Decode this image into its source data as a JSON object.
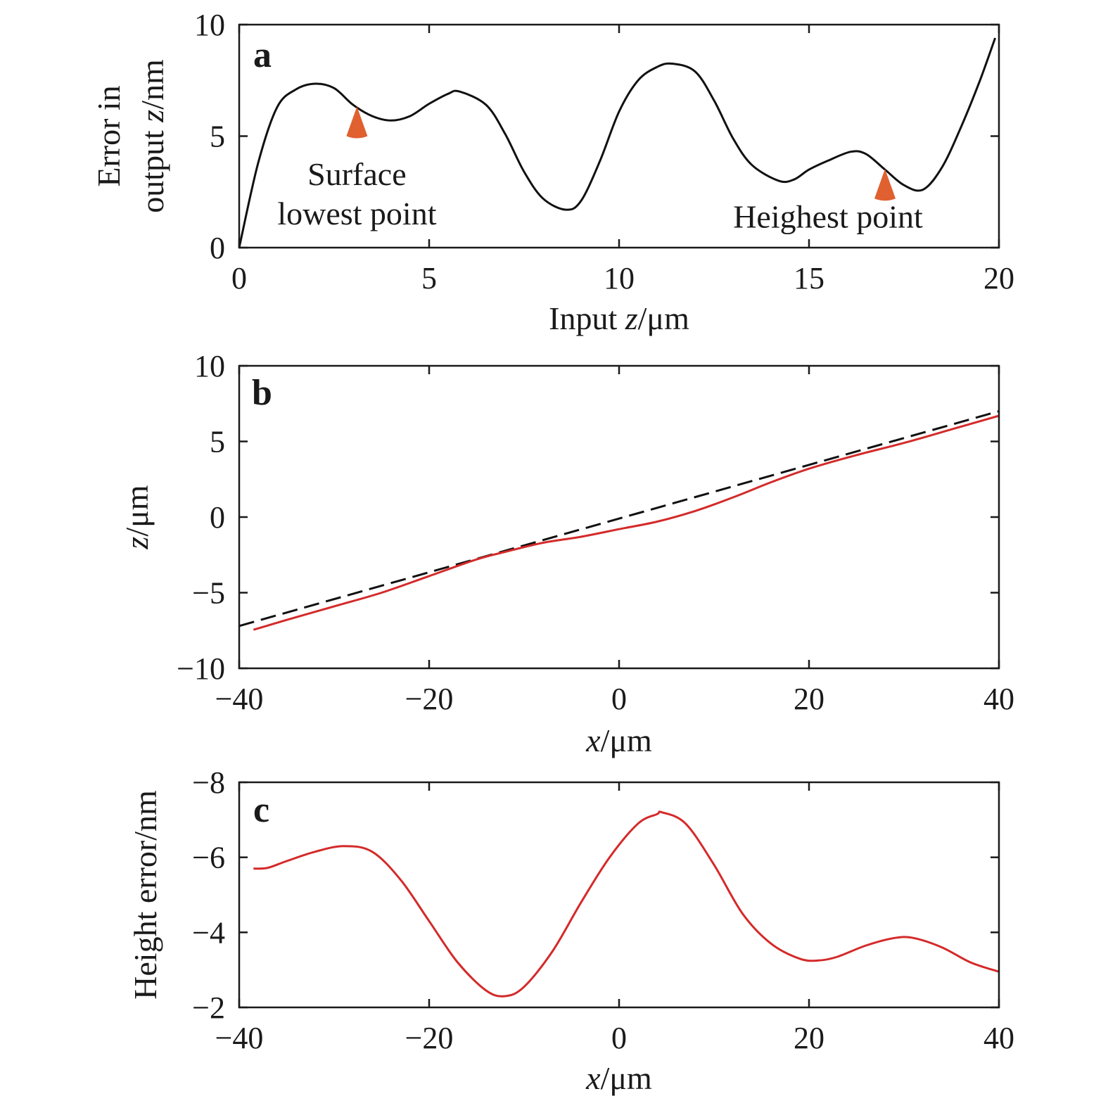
{
  "chart_data": [
    {
      "type": "line",
      "panel": "a",
      "xlabel": "Input z/μm",
      "xlabel_parts": [
        "Input ",
        "z",
        "/μm"
      ],
      "ylabel_lines": [
        [
          "Error in"
        ],
        [
          "output ",
          "z",
          "/nm"
        ]
      ],
      "xlim": [
        0,
        20
      ],
      "ylim": [
        0,
        10
      ],
      "xticks": [
        0,
        5,
        10,
        15,
        20
      ],
      "xtick_labels": [
        "0",
        "5",
        "10",
        "15",
        "20"
      ],
      "yticks": [
        0,
        5,
        10
      ],
      "ytick_labels": [
        "0",
        "5",
        "10"
      ],
      "grid": false,
      "series": [
        {
          "color": "#111111",
          "dash": "solid",
          "x": [
            0,
            0.5,
            1.0,
            1.5,
            2.0,
            2.5,
            3.0,
            3.5,
            4.0,
            4.5,
            5.0,
            5.5,
            5.8,
            6.5,
            7.0,
            7.5,
            8.0,
            8.6,
            9.0,
            9.5,
            10.0,
            10.5,
            11.0,
            11.4,
            12.0,
            12.5,
            13.0,
            13.5,
            14.2,
            14.6,
            15.0,
            15.5,
            16.1,
            16.5,
            17.0,
            17.5,
            18.0,
            18.5,
            19.0,
            19.5,
            19.9
          ],
          "y": [
            0.0,
            3.8,
            6.3,
            7.1,
            7.35,
            7.15,
            6.4,
            5.9,
            5.7,
            5.9,
            6.45,
            6.9,
            7.0,
            6.4,
            5.1,
            3.4,
            2.2,
            1.7,
            2.1,
            3.9,
            6.1,
            7.5,
            8.1,
            8.25,
            7.9,
            6.6,
            4.9,
            3.7,
            3.0,
            3.05,
            3.5,
            3.9,
            4.3,
            4.2,
            3.5,
            2.8,
            2.6,
            3.6,
            5.4,
            7.5,
            9.4
          ]
        }
      ],
      "annotations": [
        {
          "lines": [
            "Surface",
            "lowest point"
          ],
          "marker_x": 3.1,
          "marker_y": 5.0,
          "text_x": 3.1,
          "text_y": 2.8
        },
        {
          "lines": [
            "Heighest point"
          ],
          "marker_x": 17.0,
          "marker_y": 2.2,
          "text_x": 15.5,
          "text_y": 0.9
        }
      ],
      "marker_color": "#e06030"
    },
    {
      "type": "line",
      "panel": "b",
      "xlabel": "x/μm",
      "xlabel_parts": [
        "",
        "x",
        "/μm"
      ],
      "ylabel_lines": [
        [
          "",
          "z",
          "/μm"
        ]
      ],
      "xlim": [
        -40,
        40
      ],
      "ylim": [
        -10,
        10
      ],
      "xticks": [
        -40,
        -20,
        0,
        20,
        40
      ],
      "xtick_labels": [
        "−40",
        "−20",
        "0",
        "20",
        "40"
      ],
      "yticks": [
        -10,
        -5,
        0,
        5,
        10
      ],
      "ytick_labels": [
        "−10",
        "−5",
        "0",
        "5",
        "10"
      ],
      "grid": false,
      "series": [
        {
          "color": "#111111",
          "dash": "dashed",
          "x": [
            -40,
            40
          ],
          "y": [
            -7.2,
            7.0
          ]
        },
        {
          "color": "#d42a2a",
          "dash": "solid",
          "x": [
            -38.5,
            -35,
            -30,
            -25,
            -20,
            -15,
            -12,
            -8,
            -4,
            0,
            4,
            8,
            12,
            16,
            20,
            25,
            30,
            35,
            40
          ],
          "y": [
            -7.45,
            -6.8,
            -5.9,
            -5.0,
            -3.9,
            -2.8,
            -2.3,
            -1.7,
            -1.3,
            -0.8,
            -0.3,
            0.4,
            1.3,
            2.3,
            3.2,
            4.1,
            4.9,
            5.8,
            6.7
          ]
        }
      ],
      "annotations": []
    },
    {
      "type": "line",
      "panel": "c",
      "xlabel": "x/μm",
      "xlabel_parts": [
        "",
        "x",
        "/μm"
      ],
      "ylabel_lines": [
        [
          "Height error/nm"
        ]
      ],
      "xlim": [
        -40,
        40
      ],
      "ylim": [
        -8,
        -2
      ],
      "y_inverted": true,
      "xticks": [
        -40,
        -20,
        0,
        20,
        40
      ],
      "xtick_labels": [
        "−40",
        "−20",
        "0",
        "20",
        "40"
      ],
      "yticks": [
        -8,
        -6,
        -4,
        -2
      ],
      "ytick_labels": [
        "−8",
        "−6",
        "−4",
        "−2"
      ],
      "grid": false,
      "series": [
        {
          "color": "#d42a2a",
          "dash": "solid",
          "x": [
            -38.5,
            -37,
            -35,
            -32,
            -29,
            -26,
            -23,
            -20,
            -17,
            -14,
            -12,
            -10,
            -7,
            -4,
            -1,
            2,
            4,
            4.5,
            7,
            10,
            13,
            16,
            19,
            21,
            23,
            26,
            29,
            31,
            34,
            37,
            40
          ],
          "y": [
            -5.7,
            -5.72,
            -5.9,
            -6.15,
            -6.3,
            -6.15,
            -5.4,
            -4.3,
            -3.2,
            -2.45,
            -2.3,
            -2.55,
            -3.5,
            -4.8,
            -6.0,
            -6.9,
            -7.15,
            -7.2,
            -6.9,
            -5.8,
            -4.5,
            -3.7,
            -3.3,
            -3.25,
            -3.35,
            -3.65,
            -3.85,
            -3.85,
            -3.6,
            -3.2,
            -2.95
          ]
        }
      ],
      "annotations": []
    }
  ]
}
